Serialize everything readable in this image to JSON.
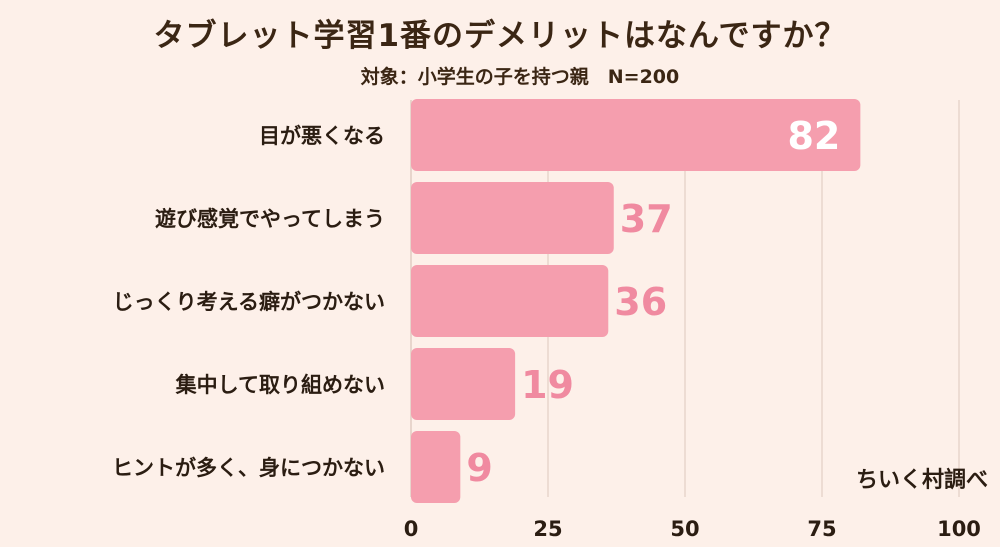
{
  "title": "タブレット学習1番のデメリットはなんですか？",
  "subtitle": "対象：小学生の子を持つ親　N=200",
  "credit": "ちいく村調べ",
  "colors": {
    "background": "#fdf0e9",
    "bar": "#f59eae",
    "value_inside": "#ffffff",
    "value_outside": "#f08aa0",
    "gridline": "#e8d5cc",
    "axis_text": "#2b1d12"
  },
  "chart_data": {
    "type": "bar",
    "orientation": "horizontal",
    "categories": [
      "目が悪くなる",
      "遊び感覚でやってしまう",
      "じっくり考える癖がつかない",
      "集中して取り組めない",
      "ヒントが多く、身につかない"
    ],
    "values": [
      82,
      37,
      36,
      19,
      9
    ],
    "xlim": [
      0,
      100
    ],
    "xticks": [
      0,
      25,
      50,
      75,
      100
    ],
    "grid": true,
    "title": "タブレット学習1番のデメリットはなんですか？",
    "subtitle": "対象：小学生の子を持つ親　N=200"
  }
}
